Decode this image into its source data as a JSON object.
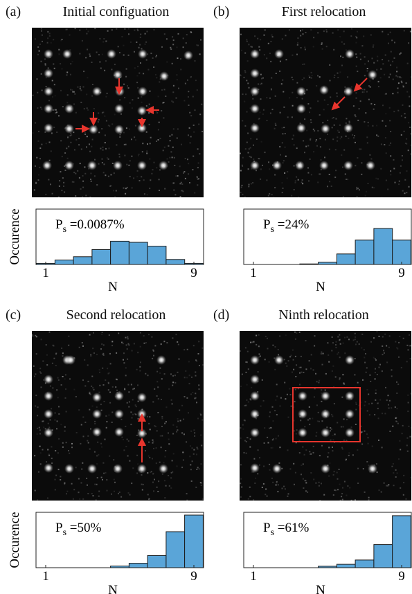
{
  "figure": {
    "panels": [
      {
        "label": "(a)",
        "title": "Initial configuation",
        "ylabel": "Occurence",
        "xlabel": "N",
        "x_tick_min": "1",
        "x_tick_max": "9",
        "ps_symbol": "P",
        "ps_sub": "s",
        "ps_value": " =0.0087%",
        "has_box": false,
        "arrows": [
          {
            "from": [
              172,
              113
            ],
            "to": [
              172,
              135
            ]
          },
          {
            "from": [
              109,
              186
            ],
            "to": [
              128,
              186
            ]
          },
          {
            "from": [
              135,
              162
            ],
            "to": [
              135,
              180
            ]
          },
          {
            "from": [
              230,
              159
            ],
            "to": [
              212,
              159
            ]
          },
          {
            "from": [
              205,
              170
            ],
            "to": [
              205,
              182
            ]
          }
        ],
        "spots": [
          [
            70,
            78
          ],
          [
            97,
            78
          ],
          [
            161,
            78
          ],
          [
            206,
            78
          ],
          [
            272,
            80
          ],
          [
            70,
            106
          ],
          [
            170,
            108
          ],
          [
            237,
            110
          ],
          [
            70,
            132
          ],
          [
            140,
            132
          ],
          [
            173,
            132
          ],
          [
            206,
            132
          ],
          [
            70,
            157
          ],
          [
            100,
            157
          ],
          [
            172,
            157
          ],
          [
            205,
            160
          ],
          [
            70,
            185
          ],
          [
            100,
            186
          ],
          [
            135,
            187
          ],
          [
            172,
            187
          ],
          [
            205,
            185
          ],
          [
            68,
            239
          ],
          [
            100,
            239
          ],
          [
            133,
            239
          ],
          [
            170,
            239
          ],
          [
            205,
            239
          ],
          [
            236,
            239
          ]
        ]
      },
      {
        "label": "(b)",
        "title": "First relocation",
        "ylabel": "",
        "xlabel": "N",
        "x_tick_min": "1",
        "x_tick_max": "9",
        "ps_symbol": "P",
        "ps_sub": "s",
        "ps_value": " =24%",
        "has_box": false,
        "arrows": [
          {
            "from": [
              530,
              113
            ],
            "to": [
              512,
              131
            ]
          },
          {
            "from": [
              498,
              140
            ],
            "to": [
              480,
              158
            ]
          }
        ],
        "spots": [
          [
            368,
            78
          ],
          [
            403,
            78
          ],
          [
            505,
            78
          ],
          [
            368,
            106
          ],
          [
            538,
            108
          ],
          [
            368,
            132
          ],
          [
            435,
            132
          ],
          [
            468,
            130
          ],
          [
            503,
            132
          ],
          [
            368,
            157
          ],
          [
            435,
            157
          ],
          [
            368,
            185
          ],
          [
            435,
            185
          ],
          [
            470,
            186
          ],
          [
            503,
            185
          ],
          [
            368,
            239
          ],
          [
            400,
            239
          ],
          [
            433,
            239
          ],
          [
            468,
            239
          ],
          [
            503,
            239
          ],
          [
            535,
            239
          ]
        ]
      },
      {
        "label": "(c)",
        "title": "Second relocation",
        "ylabel": "Occurence",
        "xlabel": "N",
        "x_tick_min": "1",
        "x_tick_max": "9",
        "ps_symbol": "P",
        "ps_sub": "s",
        "ps_value": " =50%",
        "has_box": false,
        "arrows": [
          {
            "from": [
              205,
              623
            ],
            "to": [
              205,
              599
            ]
          },
          {
            "from": [
              205,
              668
            ],
            "to": [
              205,
              634
            ]
          }
        ],
        "spots": [
          [
            97,
            520
          ],
          [
            102,
            520
          ],
          [
            233,
            520
          ],
          [
            70,
            548
          ],
          [
            70,
            572
          ],
          [
            140,
            574
          ],
          [
            172,
            572
          ],
          [
            205,
            574
          ],
          [
            70,
            598
          ],
          [
            140,
            598
          ],
          [
            172,
            598
          ],
          [
            205,
            598
          ],
          [
            70,
            625
          ],
          [
            140,
            624
          ],
          [
            172,
            624
          ],
          [
            205,
            626
          ],
          [
            70,
            676
          ],
          [
            100,
            677
          ],
          [
            133,
            677
          ],
          [
            170,
            677
          ],
          [
            205,
            677
          ],
          [
            236,
            677
          ]
        ]
      },
      {
        "label": "(d)",
        "title": "Ninth relocation",
        "ylabel": "",
        "xlabel": "N",
        "x_tick_min": "1",
        "x_tick_max": "9",
        "ps_symbol": "P",
        "ps_sub": "s",
        "ps_value": " =61%",
        "has_box": true,
        "arrows": [],
        "spots": [
          [
            368,
            520
          ],
          [
            403,
            520
          ],
          [
            505,
            520
          ],
          [
            368,
            548
          ],
          [
            368,
            572
          ],
          [
            437,
            572
          ],
          [
            470,
            572
          ],
          [
            505,
            572
          ],
          [
            368,
            598
          ],
          [
            437,
            598
          ],
          [
            470,
            598
          ],
          [
            505,
            598
          ],
          [
            368,
            625
          ],
          [
            437,
            625
          ],
          [
            470,
            625
          ],
          [
            505,
            625
          ],
          [
            368,
            676
          ],
          [
            400,
            677
          ],
          [
            470,
            677
          ],
          [
            538,
            677
          ]
        ]
      }
    ]
  },
  "chart_data": [
    {
      "type": "bar",
      "panel": "(a)",
      "xlabel": "N",
      "ylabel": "Occurence",
      "categories": [
        1,
        2,
        3,
        4,
        5,
        6,
        7,
        8,
        9
      ],
      "values": [
        0.02,
        0.08,
        0.14,
        0.27,
        0.42,
        0.4,
        0.33,
        0.09,
        0.02
      ],
      "ylim": [
        0,
        1
      ]
    },
    {
      "type": "bar",
      "panel": "(b)",
      "xlabel": "N",
      "ylabel": "",
      "categories": [
        1,
        2,
        3,
        4,
        5,
        6,
        7,
        8,
        9
      ],
      "values": [
        0,
        0,
        0,
        0.01,
        0.04,
        0.19,
        0.44,
        0.65,
        0.44
      ],
      "ylim": [
        0,
        1
      ]
    },
    {
      "type": "bar",
      "panel": "(c)",
      "xlabel": "N",
      "ylabel": "Occurence",
      "categories": [
        1,
        2,
        3,
        4,
        5,
        6,
        7,
        8,
        9
      ],
      "values": [
        0,
        0,
        0,
        0,
        0.03,
        0.08,
        0.22,
        0.65,
        0.95
      ],
      "ylim": [
        0,
        1
      ]
    },
    {
      "type": "bar",
      "panel": "(d)",
      "xlabel": "N",
      "ylabel": "",
      "categories": [
        1,
        2,
        3,
        4,
        5,
        6,
        7,
        8,
        9
      ],
      "values": [
        0,
        0,
        0,
        0,
        0.03,
        0.07,
        0.16,
        0.48,
        1.08
      ],
      "ylim": [
        0,
        1.15
      ]
    }
  ]
}
